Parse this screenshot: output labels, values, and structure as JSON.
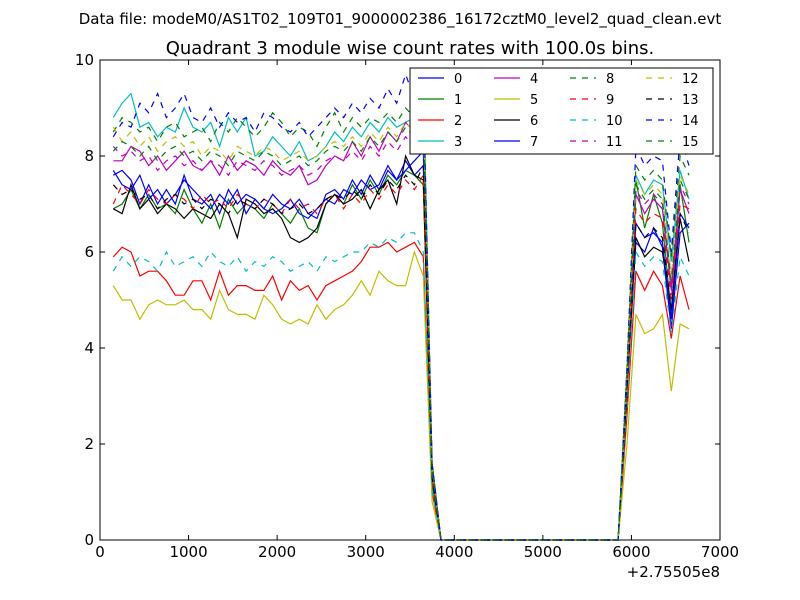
{
  "header": {
    "data_file": "Data file: modeM0/AS1T02_109T01_9000002386_16172cztM0_level2_quad_clean.evt"
  },
  "chart_data": {
    "type": "line",
    "title": "Quadrant 3 module wise count rates with 100.0s bins.",
    "xlabel": "",
    "ylabel": "",
    "x_offset_label": "+2.75505e8",
    "xlim": [
      0,
      7000
    ],
    "ylim": [
      0,
      10
    ],
    "x_ticks": [
      0,
      1000,
      2000,
      3000,
      4000,
      5000,
      6000,
      7000
    ],
    "y_ticks": [
      0,
      2,
      4,
      6,
      8,
      10
    ],
    "grid": false,
    "legend_position": "top-right",
    "x": [
      150,
      250,
      350,
      450,
      550,
      650,
      750,
      850,
      950,
      1050,
      1150,
      1250,
      1350,
      1450,
      1550,
      1650,
      1750,
      1850,
      1950,
      2050,
      2150,
      2250,
      2350,
      2450,
      2550,
      2650,
      2750,
      2850,
      2950,
      3050,
      3150,
      3250,
      3350,
      3450,
      3550,
      3650,
      3750,
      3850,
      5850,
      5950,
      6050,
      6150,
      6250,
      6350,
      6450,
      6550,
      6650
    ],
    "series": [
      {
        "name": "0",
        "color": "#0000ff",
        "dash": "solid",
        "values": [
          7.6,
          7.7,
          7.5,
          7.0,
          7.4,
          7.0,
          7.3,
          7.0,
          7.6,
          7.1,
          7.0,
          7.2,
          6.8,
          7.3,
          7.0,
          7.2,
          7.1,
          6.9,
          7.2,
          7.0,
          6.9,
          7.1,
          6.8,
          6.7,
          7.2,
          7.3,
          7.1,
          7.5,
          7.2,
          7.6,
          7.3,
          7.7,
          7.5,
          7.9,
          7.6,
          7.8,
          1.6,
          0.0,
          0.0,
          3.2,
          6.2,
          6.0,
          6.5,
          6.1,
          4.4,
          6.4,
          6.6
        ]
      },
      {
        "name": "1",
        "color": "#008000",
        "dash": "solid",
        "values": [
          6.9,
          7.0,
          7.3,
          6.9,
          7.2,
          6.9,
          7.0,
          6.8,
          7.3,
          6.9,
          6.6,
          7.0,
          6.5,
          7.1,
          6.8,
          7.0,
          6.9,
          6.7,
          7.0,
          6.8,
          6.6,
          6.9,
          6.5,
          6.4,
          7.0,
          7.2,
          7.0,
          7.4,
          7.1,
          7.5,
          7.2,
          7.6,
          7.4,
          7.7,
          7.6,
          7.4,
          1.2,
          0.0,
          0.0,
          3.0,
          7.5,
          6.5,
          7.2,
          6.6,
          4.7,
          7.4,
          6.2
        ]
      },
      {
        "name": "2",
        "color": "#ff0000",
        "dash": "solid",
        "values": [
          5.9,
          6.1,
          6.0,
          5.5,
          5.6,
          5.6,
          5.4,
          5.1,
          5.1,
          5.4,
          5.4,
          5.0,
          5.6,
          5.1,
          5.3,
          5.3,
          5.2,
          5.2,
          5.5,
          5.0,
          5.4,
          5.2,
          5.3,
          5.0,
          5.3,
          5.4,
          5.5,
          5.6,
          5.8,
          6.1,
          6.1,
          6.2,
          6.0,
          6.1,
          6.2,
          5.9,
          1.0,
          0.0,
          0.0,
          2.6,
          5.6,
          5.2,
          5.6,
          5.3,
          4.2,
          5.5,
          4.8
        ]
      },
      {
        "name": "3",
        "color": "#00bfbf",
        "dash": "solid",
        "values": [
          8.8,
          9.1,
          9.3,
          8.6,
          8.7,
          8.4,
          8.6,
          8.5,
          9.0,
          8.6,
          8.5,
          8.7,
          8.2,
          8.8,
          8.5,
          8.8,
          8.0,
          8.1,
          8.4,
          8.2,
          8.0,
          8.3,
          7.9,
          8.0,
          8.2,
          8.5,
          8.3,
          8.6,
          8.4,
          8.7,
          8.5,
          8.8,
          8.6,
          8.7,
          8.8,
          9.6,
          1.5,
          0.0,
          0.0,
          3.4,
          7.6,
          7.2,
          7.5,
          7.4,
          5.8,
          7.7,
          7.1
        ]
      },
      {
        "name": "4",
        "color": "#bf00bf",
        "dash": "solid",
        "values": [
          7.9,
          7.9,
          8.2,
          8.1,
          7.8,
          8.0,
          7.7,
          7.9,
          8.1,
          7.8,
          7.7,
          7.9,
          7.6,
          8.0,
          7.7,
          7.9,
          7.8,
          7.6,
          7.9,
          7.7,
          7.6,
          7.8,
          7.4,
          7.5,
          7.8,
          8.0,
          7.9,
          8.3,
          8.0,
          8.4,
          8.1,
          8.5,
          8.3,
          8.7,
          8.5,
          9.0,
          1.4,
          0.0,
          0.0,
          3.2,
          7.2,
          6.8,
          7.1,
          6.9,
          5.2,
          7.3,
          6.8
        ]
      },
      {
        "name": "5",
        "color": "#bfbf00",
        "dash": "solid",
        "values": [
          5.3,
          5.0,
          5.0,
          4.6,
          4.9,
          5.0,
          4.9,
          4.9,
          5.0,
          4.8,
          4.8,
          4.6,
          5.2,
          4.8,
          4.7,
          4.7,
          4.6,
          5.1,
          4.9,
          4.6,
          4.5,
          4.6,
          4.5,
          4.9,
          4.6,
          4.8,
          4.9,
          5.1,
          5.4,
          5.1,
          5.6,
          5.4,
          5.3,
          5.3,
          6.0,
          5.5,
          0.8,
          0.0,
          0.0,
          2.0,
          4.7,
          4.3,
          4.4,
          4.7,
          3.1,
          4.5,
          4.4
        ]
      },
      {
        "name": "6",
        "color": "#000000",
        "dash": "solid",
        "values": [
          6.9,
          6.8,
          7.4,
          6.9,
          7.1,
          6.8,
          7.0,
          6.9,
          6.7,
          6.9,
          6.8,
          6.7,
          7.0,
          6.8,
          6.3,
          7.1,
          7.0,
          6.8,
          6.9,
          6.7,
          6.3,
          6.2,
          6.3,
          6.5,
          7.0,
          7.2,
          7.0,
          7.1,
          7.3,
          6.9,
          7.3,
          7.5,
          7.0,
          8.0,
          7.6,
          7.5,
          1.3,
          0.0,
          0.0,
          3.1,
          6.3,
          5.9,
          6.1,
          6.0,
          4.8,
          6.7,
          5.8
        ]
      },
      {
        "name": "7",
        "color": "#0000ff",
        "dash": "solid",
        "values": [
          7.7,
          7.4,
          7.3,
          7.6,
          7.1,
          7.3,
          7.0,
          7.2,
          7.5,
          7.3,
          7.1,
          6.9,
          7.2,
          7.0,
          7.3,
          6.8,
          7.1,
          6.9,
          6.8,
          6.9,
          7.1,
          6.8,
          6.7,
          6.9,
          7.1,
          7.0,
          7.3,
          7.2,
          7.5,
          7.3,
          7.4,
          7.8,
          7.5,
          7.7,
          7.9,
          8.1,
          1.5,
          0.0,
          0.0,
          3.1,
          6.6,
          6.3,
          6.4,
          6.2,
          4.6,
          6.8,
          6.5
        ]
      },
      {
        "name": "8",
        "color": "#008000",
        "dash": "dashed",
        "values": [
          8.5,
          8.8,
          8.7,
          8.5,
          8.6,
          8.3,
          8.6,
          8.7,
          8.4,
          8.5,
          8.6,
          8.3,
          8.7,
          8.5,
          8.8,
          8.6,
          8.4,
          8.6,
          8.9,
          8.7,
          8.4,
          8.6,
          8.5,
          8.2,
          8.6,
          8.9,
          8.5,
          8.8,
          8.6,
          8.8,
          8.7,
          8.9,
          8.7,
          9.0,
          8.8,
          9.1,
          1.6,
          0.0,
          0.0,
          3.6,
          7.8,
          7.5,
          7.7,
          7.5,
          5.9,
          8.0,
          7.6
        ]
      },
      {
        "name": "9",
        "color": "#ff0000",
        "dash": "dashed",
        "values": [
          7.0,
          7.4,
          7.2,
          7.0,
          7.3,
          7.1,
          7.0,
          7.2,
          7.1,
          6.9,
          7.2,
          7.0,
          7.1,
          6.9,
          7.2,
          7.0,
          6.9,
          7.1,
          7.0,
          6.8,
          7.1,
          6.9,
          7.0,
          6.8,
          7.1,
          7.2,
          6.9,
          7.2,
          7.0,
          7.3,
          7.1,
          7.4,
          7.2,
          7.5,
          7.3,
          7.6,
          1.3,
          0.0,
          0.0,
          3.0,
          6.9,
          6.6,
          6.8,
          6.7,
          5.0,
          7.0,
          6.9
        ]
      },
      {
        "name": "10",
        "color": "#00bfbf",
        "dash": "dashed",
        "values": [
          5.6,
          5.9,
          5.7,
          5.9,
          5.8,
          5.6,
          6.0,
          5.7,
          5.8,
          5.9,
          5.7,
          6.0,
          5.8,
          5.7,
          5.9,
          5.6,
          5.8,
          5.7,
          5.9,
          5.8,
          5.6,
          5.7,
          5.8,
          5.6,
          5.9,
          5.8,
          5.9,
          6.0,
          6.0,
          6.2,
          6.1,
          6.3,
          6.2,
          6.4,
          6.4,
          6.0,
          1.0,
          0.0,
          0.0,
          2.8,
          6.0,
          5.7,
          5.9,
          5.8,
          4.3,
          5.9,
          5.5
        ]
      },
      {
        "name": "11",
        "color": "#bf00bf",
        "dash": "dashed",
        "values": [
          8.2,
          8.0,
          8.1,
          7.9,
          8.0,
          7.7,
          7.9,
          8.0,
          7.8,
          7.9,
          7.7,
          7.9,
          7.8,
          7.6,
          7.9,
          7.8,
          7.7,
          7.9,
          7.8,
          7.6,
          7.7,
          7.8,
          7.6,
          7.7,
          7.9,
          8.0,
          7.9,
          8.1,
          7.9,
          8.2,
          8.0,
          8.3,
          8.1,
          8.4,
          8.2,
          8.6,
          1.4,
          0.0,
          0.0,
          3.3,
          7.3,
          7.0,
          7.2,
          7.0,
          5.3,
          7.4,
          7.0
        ]
      },
      {
        "name": "12",
        "color": "#bfbf00",
        "dash": "dashed",
        "values": [
          8.6,
          8.3,
          8.5,
          8.2,
          8.4,
          8.1,
          8.3,
          8.4,
          8.2,
          8.3,
          8.0,
          8.2,
          8.1,
          7.9,
          8.2,
          8.1,
          8.0,
          8.2,
          8.1,
          7.9,
          8.0,
          8.1,
          7.9,
          8.0,
          8.2,
          8.3,
          8.2,
          8.4,
          8.2,
          8.5,
          8.3,
          8.6,
          8.4,
          8.7,
          8.5,
          8.9,
          1.5,
          0.0,
          0.0,
          3.4,
          7.5,
          7.2,
          7.4,
          7.2,
          5.5,
          7.6,
          7.2
        ]
      },
      {
        "name": "13",
        "color": "#000000",
        "dash": "dashed",
        "values": [
          7.4,
          7.2,
          7.3,
          7.1,
          7.2,
          6.9,
          7.1,
          7.2,
          7.0,
          7.1,
          6.9,
          7.1,
          7.0,
          6.8,
          7.1,
          7.0,
          6.9,
          7.1,
          7.0,
          6.8,
          6.9,
          7.0,
          6.8,
          6.9,
          7.1,
          7.2,
          7.1,
          7.3,
          7.1,
          7.4,
          7.2,
          7.5,
          7.3,
          7.6,
          7.4,
          7.8,
          1.3,
          0.0,
          0.0,
          3.1,
          6.6,
          6.3,
          6.5,
          6.3,
          4.8,
          6.8,
          6.4
        ]
      },
      {
        "name": "14",
        "color": "#0000ff",
        "dash": "dashed",
        "values": [
          8.4,
          8.7,
          8.6,
          9.1,
          8.9,
          9.3,
          8.8,
          9.0,
          9.3,
          8.8,
          8.7,
          9.0,
          8.6,
          8.9,
          8.7,
          8.8,
          8.5,
          8.9,
          8.8,
          8.6,
          8.5,
          8.7,
          8.4,
          8.6,
          8.8,
          9.0,
          8.8,
          9.1,
          8.9,
          9.2,
          9.0,
          9.4,
          9.1,
          9.7,
          9.2,
          9.5,
          1.6,
          0.0,
          0.0,
          3.6,
          8.2,
          7.8,
          8.0,
          7.9,
          6.0,
          8.4,
          7.8
        ]
      },
      {
        "name": "15",
        "color": "#008000",
        "dash": "dashed",
        "values": [
          8.1,
          8.3,
          8.2,
          8.0,
          8.2,
          7.9,
          8.1,
          8.2,
          8.0,
          8.1,
          7.9,
          8.1,
          8.0,
          7.8,
          8.1,
          8.0,
          7.9,
          8.1,
          8.0,
          7.8,
          7.9,
          8.0,
          7.8,
          7.9,
          8.1,
          8.2,
          8.1,
          8.3,
          8.1,
          8.4,
          8.2,
          8.5,
          8.3,
          8.6,
          8.4,
          8.8,
          1.4,
          0.0,
          0.0,
          3.3,
          7.4,
          7.1,
          7.3,
          7.1,
          5.4,
          7.5,
          7.1
        ]
      }
    ]
  }
}
